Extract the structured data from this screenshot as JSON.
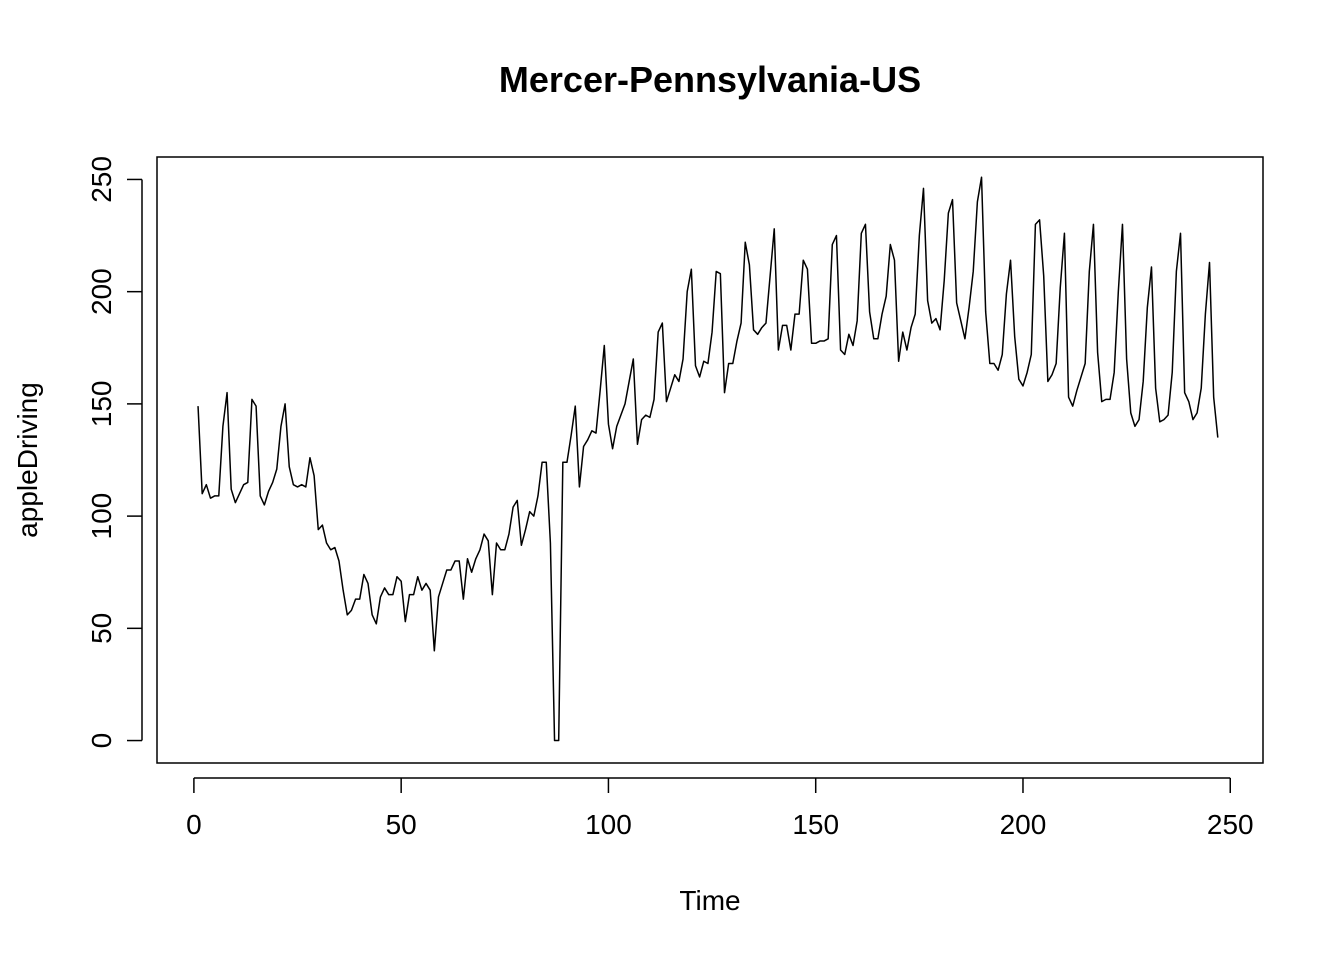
{
  "chart_data": {
    "type": "line",
    "title": "Mercer-Pennsylvania-US",
    "xlabel": "Time",
    "ylabel": "appleDriving",
    "xlim": [
      -8.9,
      257.9
    ],
    "ylim": [
      -10,
      260
    ],
    "xticks": [
      0,
      50,
      100,
      150,
      200,
      250
    ],
    "yticks": [
      0,
      50,
      100,
      150,
      200,
      250
    ],
    "xtick_labels": [
      "0",
      "50",
      "100",
      "150",
      "200",
      "250"
    ],
    "ytick_labels": [
      "0",
      "50",
      "100",
      "150",
      "200",
      "250"
    ],
    "grid": false,
    "legend": "none",
    "line_color": "#000000",
    "x_start": 1,
    "series": [
      {
        "values": [
          149,
          110,
          114,
          108,
          109,
          109,
          140,
          155,
          112,
          106,
          110,
          114,
          115,
          152,
          149,
          109,
          105,
          111,
          115,
          121,
          140,
          150,
          122,
          114,
          113,
          114,
          113,
          126,
          118,
          94,
          96,
          88,
          85,
          86,
          80,
          67,
          56,
          58,
          63,
          63,
          74,
          70,
          56,
          52,
          64,
          68,
          65,
          65,
          73,
          71,
          53,
          65,
          65,
          73,
          67,
          70,
          67,
          40,
          64,
          70,
          76,
          76,
          80,
          80,
          63,
          81,
          75,
          81,
          85,
          92,
          89,
          65,
          88,
          85,
          85,
          92,
          104,
          107,
          87,
          94,
          102,
          100,
          109,
          124,
          124,
          88,
          0,
          0,
          124,
          124,
          136,
          149,
          113,
          131,
          134,
          138,
          137,
          156,
          176,
          141,
          130,
          140,
          145,
          150,
          160,
          170,
          132,
          143,
          145,
          144,
          152,
          182,
          186,
          151,
          157,
          163,
          160,
          170,
          200,
          210,
          167,
          162,
          169,
          168,
          182,
          209,
          208,
          155,
          168,
          168,
          178,
          186,
          222,
          212,
          183,
          181,
          184,
          186,
          207,
          228,
          174,
          185,
          185,
          174,
          190,
          190,
          214,
          210,
          177,
          177,
          178,
          178,
          179,
          221,
          225,
          174,
          172,
          181,
          176,
          187,
          226,
          230,
          191,
          179,
          179,
          190,
          198,
          221,
          214,
          169,
          182,
          174,
          184,
          190,
          225,
          246,
          196,
          186,
          188,
          183,
          205,
          235,
          241,
          195,
          187,
          179,
          193,
          209,
          240,
          251,
          191,
          168,
          168,
          165,
          172,
          199,
          214,
          180,
          161,
          158,
          164,
          172,
          230,
          232,
          207,
          160,
          163,
          168,
          202,
          226,
          153,
          149,
          156,
          162,
          168,
          209,
          230,
          173,
          151,
          152,
          152,
          164,
          200,
          230,
          170,
          146,
          140,
          143,
          160,
          193,
          211,
          157,
          142,
          143,
          145,
          164,
          209,
          226,
          155,
          151,
          143,
          146,
          157,
          190,
          213,
          153,
          135
        ]
      }
    ]
  }
}
